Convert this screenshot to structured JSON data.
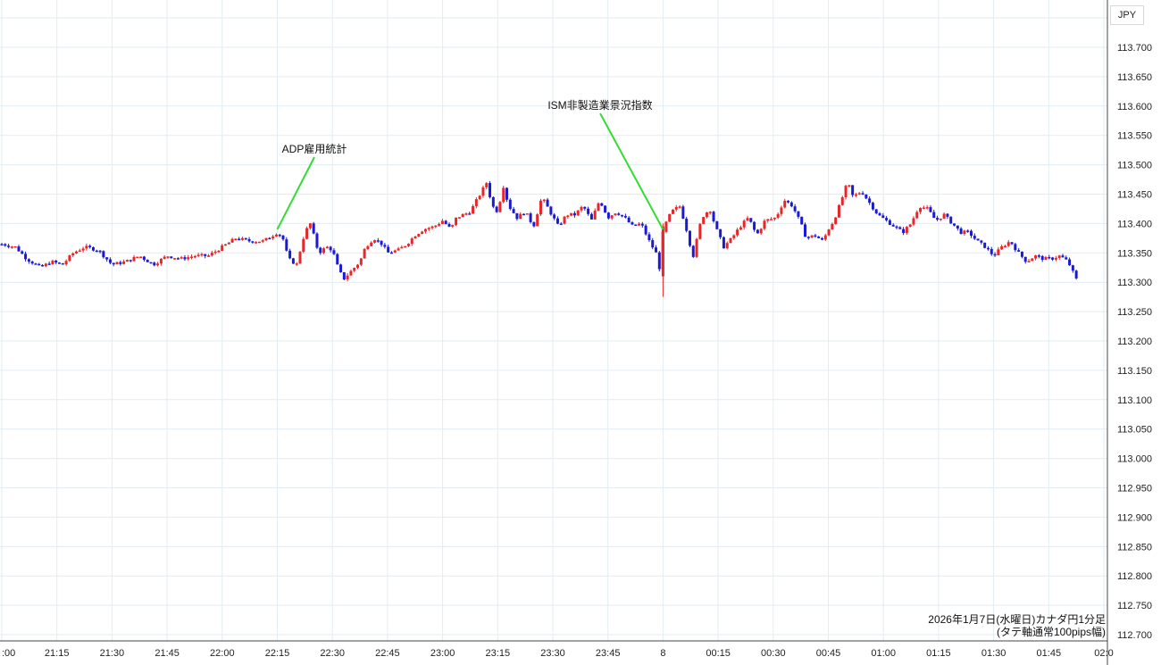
{
  "currency_label": "JPY",
  "note_line1": "2026年1月7日(水曜日)カナダ円1分足",
  "note_line2": "(タテ軸通常100pips幅)",
  "chart_data": {
    "type": "candlestick",
    "title": "",
    "y_ticks": [
      "113.700",
      "113.650",
      "113.600",
      "113.550",
      "113.500",
      "113.450",
      "113.400",
      "113.350",
      "113.300",
      "113.250",
      "113.200",
      "113.150",
      "113.100",
      "113.050",
      "113.000",
      "112.950",
      "112.900",
      "112.850",
      "112.800",
      "112.750",
      "112.700"
    ],
    "ylim": [
      112.69,
      113.74
    ],
    "x_ticks": [
      ":00",
      "21:15",
      "21:30",
      "21:45",
      "22:00",
      "22:15",
      "22:30",
      "22:45",
      "23:00",
      "23:15",
      "23:30",
      "23:45",
      "8",
      "00:15",
      "00:30",
      "00:45",
      "01:00",
      "01:15",
      "01:30",
      "01:45",
      "02:0"
    ],
    "up_color": "#e8262a",
    "down_color": "#1a1ad6",
    "grid_color": "#e2ecf2",
    "annotation_color": "#33dd33",
    "annotations": [
      {
        "text": "ADP雇用統計",
        "time_index": 5,
        "price": 113.39
      },
      {
        "text": "ISM非製造業景況指数",
        "time_index": 12,
        "price": 113.39
      }
    ],
    "price_path": [
      [
        0,
        113.365
      ],
      [
        0.25,
        113.36
      ],
      [
        0.45,
        113.34
      ],
      [
        0.7,
        113.325
      ],
      [
        0.9,
        113.335
      ],
      [
        1.1,
        113.33
      ],
      [
        1.3,
        113.35
      ],
      [
        1.5,
        113.36
      ],
      [
        1.75,
        113.355
      ],
      [
        2.0,
        113.33
      ],
      [
        2.25,
        113.335
      ],
      [
        2.5,
        113.345
      ],
      [
        2.75,
        113.33
      ],
      [
        3.0,
        113.345
      ],
      [
        3.25,
        113.34
      ],
      [
        3.5,
        113.345
      ],
      [
        3.75,
        113.345
      ],
      [
        4.0,
        113.36
      ],
      [
        4.25,
        113.375
      ],
      [
        4.5,
        113.37
      ],
      [
        4.75,
        113.37
      ],
      [
        5.0,
        113.385
      ],
      [
        5.1,
        113.375
      ],
      [
        5.2,
        113.34
      ],
      [
        5.35,
        113.33
      ],
      [
        5.5,
        113.385
      ],
      [
        5.6,
        113.4
      ],
      [
        5.75,
        113.35
      ],
      [
        5.9,
        113.36
      ],
      [
        6.0,
        113.355
      ],
      [
        6.1,
        113.325
      ],
      [
        6.2,
        113.305
      ],
      [
        6.35,
        113.32
      ],
      [
        6.5,
        113.335
      ],
      [
        6.6,
        113.36
      ],
      [
        6.75,
        113.375
      ],
      [
        6.9,
        113.365
      ],
      [
        7.0,
        113.35
      ],
      [
        7.2,
        113.355
      ],
      [
        7.35,
        113.365
      ],
      [
        7.5,
        113.38
      ],
      [
        7.65,
        113.39
      ],
      [
        7.85,
        113.395
      ],
      [
        8.0,
        113.405
      ],
      [
        8.15,
        113.39
      ],
      [
        8.25,
        113.41
      ],
      [
        8.5,
        113.42
      ],
      [
        8.65,
        113.445
      ],
      [
        8.8,
        113.47
      ],
      [
        8.9,
        113.43
      ],
      [
        9.0,
        113.42
      ],
      [
        9.1,
        113.465
      ],
      [
        9.2,
        113.43
      ],
      [
        9.35,
        113.41
      ],
      [
        9.5,
        113.42
      ],
      [
        9.65,
        113.395
      ],
      [
        9.8,
        113.445
      ],
      [
        9.95,
        113.42
      ],
      [
        10.1,
        113.395
      ],
      [
        10.25,
        113.415
      ],
      [
        10.4,
        113.415
      ],
      [
        10.55,
        113.43
      ],
      [
        10.7,
        113.405
      ],
      [
        10.85,
        113.44
      ],
      [
        11.0,
        113.41
      ],
      [
        11.15,
        113.42
      ],
      [
        11.3,
        113.41
      ],
      [
        11.45,
        113.395
      ],
      [
        11.6,
        113.4
      ],
      [
        11.75,
        113.37
      ],
      [
        11.9,
        113.345
      ],
      [
        11.95,
        113.315
      ],
      [
        12.0,
        113.39
      ],
      [
        12.15,
        113.42
      ],
      [
        12.3,
        113.43
      ],
      [
        12.4,
        113.4
      ],
      [
        12.5,
        113.36
      ],
      [
        12.55,
        113.345
      ],
      [
        12.7,
        113.41
      ],
      [
        12.85,
        113.425
      ],
      [
        12.95,
        113.395
      ],
      [
        13.1,
        113.36
      ],
      [
        13.25,
        113.375
      ],
      [
        13.4,
        113.395
      ],
      [
        13.55,
        113.41
      ],
      [
        13.7,
        113.38
      ],
      [
        13.85,
        113.405
      ],
      [
        14.05,
        113.41
      ],
      [
        14.2,
        113.44
      ],
      [
        14.35,
        113.43
      ],
      [
        14.5,
        113.4
      ],
      [
        14.6,
        113.375
      ],
      [
        14.75,
        113.38
      ],
      [
        14.9,
        113.37
      ],
      [
        15.0,
        113.39
      ],
      [
        15.1,
        113.405
      ],
      [
        15.2,
        113.43
      ],
      [
        15.35,
        113.47
      ],
      [
        15.45,
        113.445
      ],
      [
        15.6,
        113.455
      ],
      [
        15.75,
        113.435
      ],
      [
        15.9,
        113.415
      ],
      [
        16.05,
        113.405
      ],
      [
        16.2,
        113.395
      ],
      [
        16.35,
        113.385
      ],
      [
        16.5,
        113.4
      ],
      [
        16.65,
        113.43
      ],
      [
        16.8,
        113.425
      ],
      [
        16.95,
        113.405
      ],
      [
        17.1,
        113.415
      ],
      [
        17.25,
        113.4
      ],
      [
        17.4,
        113.385
      ],
      [
        17.55,
        113.385
      ],
      [
        17.7,
        113.37
      ],
      [
        17.85,
        113.36
      ],
      [
        18.0,
        113.345
      ],
      [
        18.15,
        113.36
      ],
      [
        18.3,
        113.37
      ],
      [
        18.45,
        113.35
      ],
      [
        18.6,
        113.335
      ],
      [
        18.75,
        113.345
      ],
      [
        18.9,
        113.34
      ],
      [
        19.05,
        113.34
      ],
      [
        19.2,
        113.345
      ],
      [
        19.35,
        113.335
      ],
      [
        19.5,
        113.305
      ]
    ]
  }
}
